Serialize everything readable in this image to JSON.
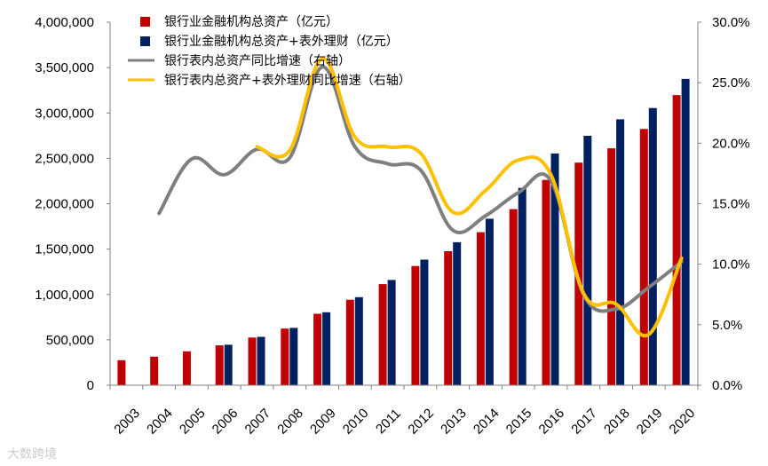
{
  "chart_data": {
    "type": "bar",
    "categories": [
      "2003",
      "2004",
      "2005",
      "2006",
      "2007",
      "2008",
      "2009",
      "2010",
      "2011",
      "2012",
      "2013",
      "2014",
      "2015",
      "2016",
      "2017",
      "2018",
      "2019",
      "2020"
    ],
    "series": [
      {
        "name": "银行业金融机构总资产（亿元）",
        "kind": "bar",
        "axis": "left",
        "color": "#c00000",
        "values": [
          276000,
          315000,
          374000,
          439000,
          525000,
          624000,
          787000,
          942000,
          1114000,
          1313000,
          1477000,
          1686000,
          1940000,
          2262000,
          2453000,
          2610000,
          2823000,
          3197000
        ]
      },
      {
        "name": "银行业金融机构总资产+表外理财（亿元）",
        "kind": "bar",
        "axis": "left",
        "color": "#002060",
        "values": [
          null,
          null,
          null,
          446000,
          533000,
          632000,
          804000,
          970000,
          1160000,
          1384000,
          1576000,
          1835000,
          2174000,
          2554000,
          2748000,
          2930000,
          3054000,
          3375000
        ]
      },
      {
        "name": "银行表内总资产同比增速（右轴）",
        "kind": "line",
        "axis": "right",
        "color": "#7f7f7f",
        "values": [
          null,
          14.2,
          18.7,
          17.4,
          19.5,
          18.8,
          26.3,
          19.7,
          18.3,
          17.8,
          12.8,
          14.0,
          15.9,
          16.9,
          7.5,
          6.3,
          8.1,
          10.2
        ]
      },
      {
        "name": "银行表内总资产+表外理财同比增速（右轴）",
        "kind": "line",
        "axis": "right",
        "color": "#ffc000",
        "values": [
          null,
          null,
          null,
          null,
          19.7,
          19.4,
          27.0,
          20.5,
          19.7,
          19.2,
          14.3,
          16.1,
          18.6,
          17.4,
          7.6,
          6.7,
          4.2,
          10.5
        ]
      }
    ],
    "ylim_left": [
      0,
      4000000
    ],
    "ylim_right": [
      0,
      30
    ],
    "left_ticks": [
      "0",
      "500,000",
      "1,000,000",
      "1,500,000",
      "2,000,000",
      "2,500,000",
      "3,000,000",
      "3,500,000",
      "4,000,000"
    ],
    "right_ticks": [
      "0.0%",
      "5.0%",
      "10.0%",
      "15.0%",
      "20.0%",
      "25.0%",
      "30.0%"
    ],
    "legend_position": "top-left",
    "grid": false
  },
  "watermark": "大数跨境"
}
